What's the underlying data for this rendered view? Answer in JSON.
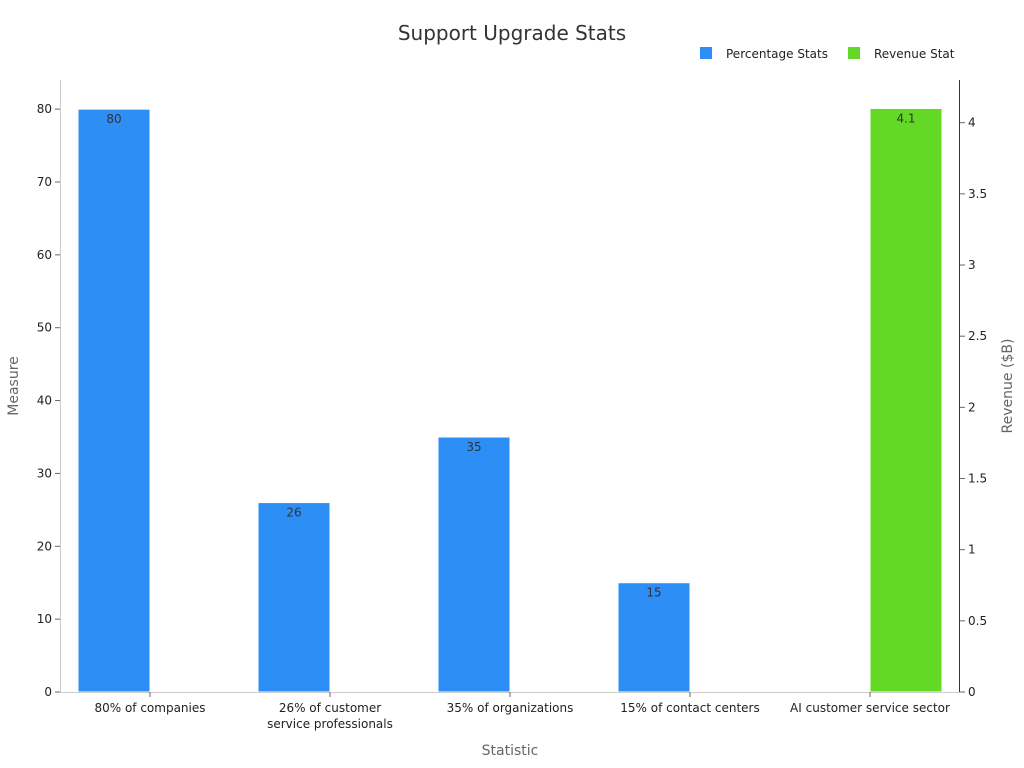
{
  "chart_data": {
    "type": "bar",
    "title": "Support Upgrade Stats",
    "xlabel": "Statistic",
    "ylabel": "Measure",
    "y2label": "Revenue ($B)",
    "categories": [
      [
        "80% of companies"
      ],
      [
        "26% of customer",
        "service professionals"
      ],
      [
        "35% of organizations"
      ],
      [
        "15% of contact centers"
      ],
      [
        "AI customer service sector"
      ]
    ],
    "series": [
      {
        "name": "Percentage Stats",
        "axis": "left",
        "color": "#2d8ff6",
        "values": [
          80,
          26,
          35,
          15,
          null
        ],
        "labels": [
          "80",
          "26",
          "35",
          "15",
          ""
        ]
      },
      {
        "name": "Revenue Stat",
        "axis": "right",
        "color": "#63d926",
        "values": [
          null,
          null,
          null,
          null,
          4.1
        ],
        "labels": [
          "",
          "",
          "",
          "",
          "4.1"
        ]
      }
    ],
    "ylim": [
      0,
      84
    ],
    "y2lim": [
      0,
      4.3
    ],
    "yticks": [
      0,
      10,
      20,
      30,
      40,
      50,
      60,
      70,
      80
    ],
    "y2ticks": [
      {
        "v": 0,
        "t": "0"
      },
      {
        "v": 0.5,
        "t": "0.5"
      },
      {
        "v": 1,
        "t": "1"
      },
      {
        "v": 1.5,
        "t": "1.5"
      },
      {
        "v": 2,
        "t": "2"
      },
      {
        "v": 2.5,
        "t": "2.5"
      },
      {
        "v": 3,
        "t": "3"
      },
      {
        "v": 3.5,
        "t": "3.5"
      },
      {
        "v": 4,
        "t": "4"
      }
    ],
    "legend_position": "top-right",
    "grid": false
  }
}
